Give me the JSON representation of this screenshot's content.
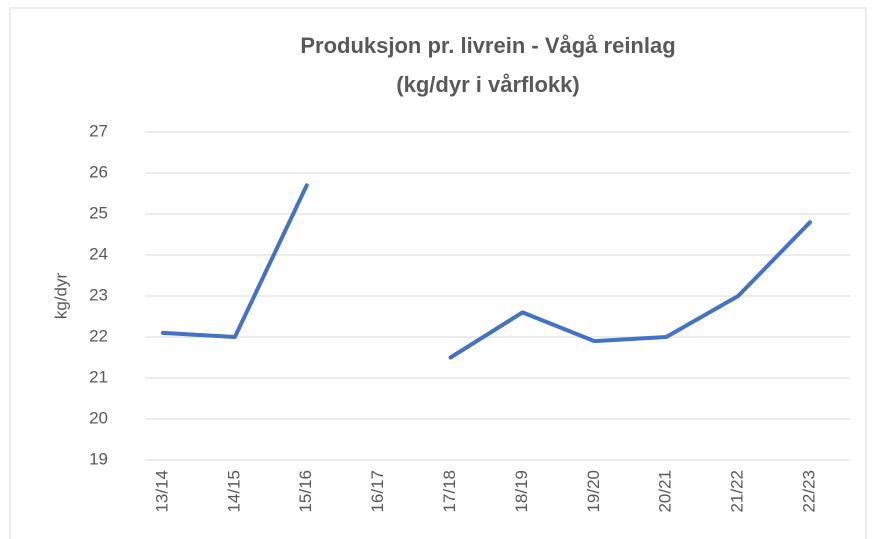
{
  "chart_data": {
    "type": "line",
    "title": "Produksjon pr. livrein - Vågå reinlag",
    "subtitle": "(kg/dyr i vårflokk)",
    "y_label": "kg/dyr",
    "categories": [
      "13/14",
      "14/15",
      "15/16",
      "16/17",
      "17/18",
      "18/19",
      "19/20",
      "20/21",
      "21/22",
      "22/23"
    ],
    "values": [
      22.1,
      22.0,
      25.7,
      null,
      21.5,
      22.6,
      21.9,
      22.0,
      23.0,
      24.8
    ],
    "color": "#4472c4",
    "ylim": [
      19,
      27
    ],
    "yticks": [
      19,
      20,
      21,
      22,
      23,
      24,
      25,
      26,
      27
    ],
    "grid": true
  }
}
